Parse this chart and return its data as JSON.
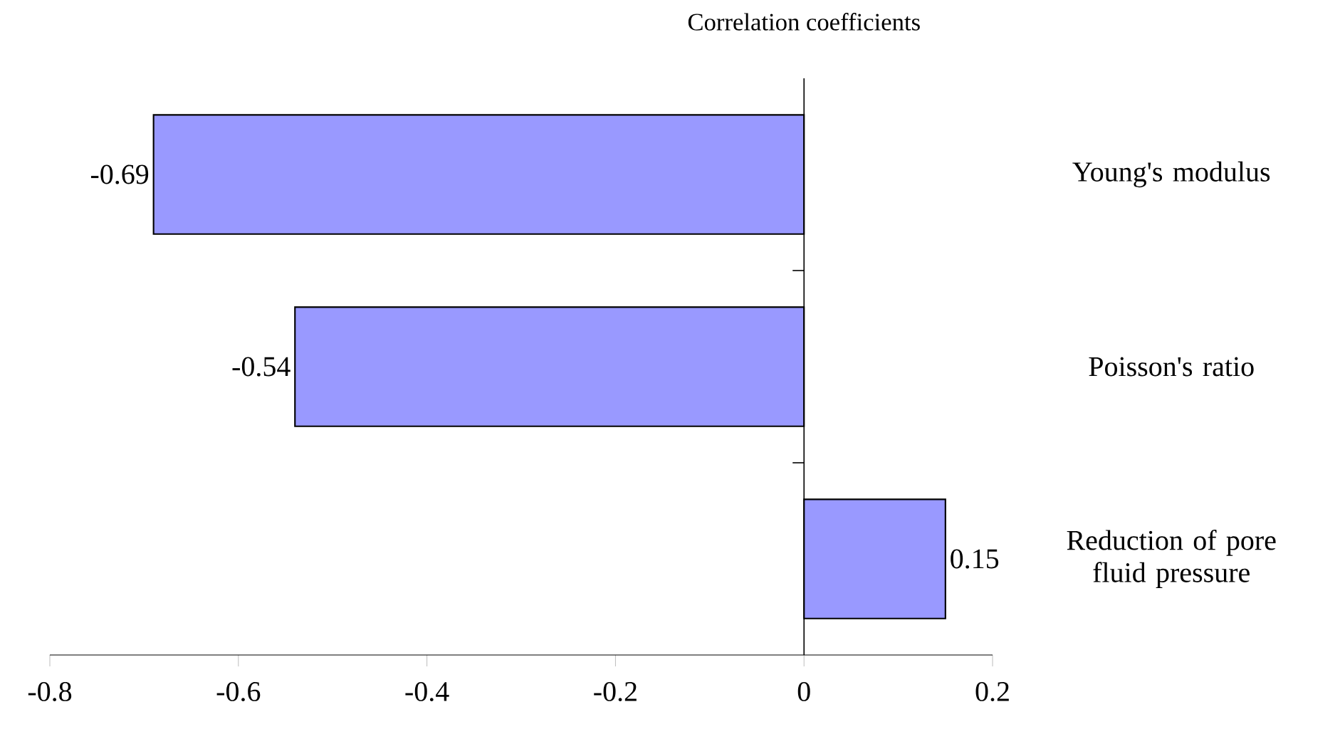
{
  "chart_data": {
    "type": "bar",
    "orientation": "horizontal",
    "title": "Correlation coefficients",
    "categories": [
      "Young's modulus",
      "Poisson's ratio",
      "Reduction of pore fluid pressure"
    ],
    "values": [
      -0.69,
      -0.54,
      0.15
    ],
    "color": "#9999ff",
    "xlim": [
      -0.8,
      0.2
    ],
    "xticks": [
      -0.8,
      -0.6,
      -0.4,
      -0.2,
      0,
      0.2
    ],
    "data_labels": true
  }
}
